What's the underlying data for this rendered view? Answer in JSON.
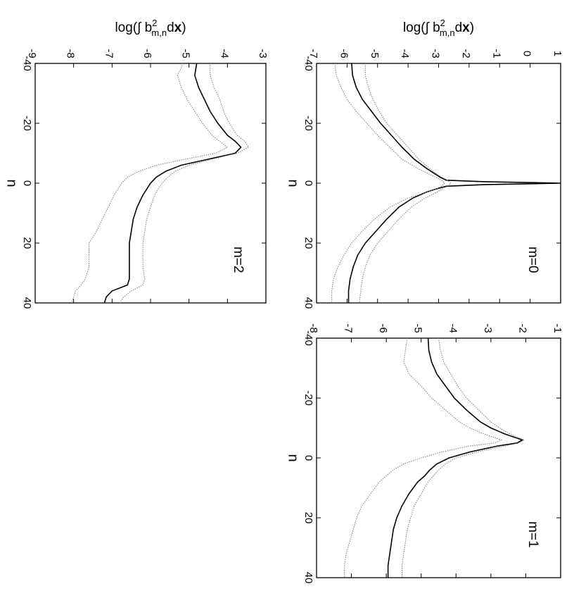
{
  "chart_data": [
    {
      "panel": "top-left",
      "type": "line",
      "annotation": "m=0",
      "xlabel": "n",
      "ylabel": {
        "pre": "log(∫ b",
        "sup": "2",
        "sub": "m,n",
        "mid": "d",
        "bold": "x",
        "post": ")"
      },
      "xlim": [
        -40,
        40
      ],
      "ylim": [
        -7,
        1
      ],
      "xticks": [
        -40,
        -20,
        0,
        20,
        40
      ],
      "yticks": [
        -7,
        -6,
        -5,
        -4,
        -3,
        -2,
        -1,
        0,
        1
      ],
      "rotated": "90deg clockwise",
      "series": [
        {
          "role": "main",
          "color": "#000000",
          "x": [
            -40,
            -36,
            -32,
            -28,
            -24,
            -20,
            -16,
            -12,
            -8,
            -5,
            -3,
            -2,
            -1,
            -0.5,
            0,
            0.5,
            1,
            2,
            3,
            5,
            8,
            12,
            16,
            20,
            24,
            28,
            32,
            36,
            40
          ],
          "y": [
            -5.85,
            -5.82,
            -5.7,
            -5.5,
            -5.2,
            -4.9,
            -4.55,
            -4.2,
            -3.8,
            -3.4,
            -3.1,
            -2.95,
            -2.75,
            -1.5,
            1,
            -1.5,
            -2.75,
            -3.1,
            -3.4,
            -3.85,
            -4.3,
            -4.7,
            -5.05,
            -5.4,
            -5.65,
            -5.8,
            -5.9,
            -5.95,
            -5.95
          ]
        },
        {
          "role": "upper",
          "color": "#7a7a7a",
          "x": [
            -40,
            -36,
            -32,
            -28,
            -24,
            -20,
            -16,
            -12,
            -8,
            -5,
            -3,
            -2,
            -1,
            0,
            1,
            2,
            3,
            5,
            8,
            12,
            16,
            20,
            24,
            28,
            32,
            36,
            40
          ],
          "y": [
            -5.4,
            -5.4,
            -5.3,
            -5.15,
            -4.95,
            -4.7,
            -4.35,
            -4.0,
            -3.65,
            -3.3,
            -3.05,
            -2.9,
            -2.7,
            -2.6,
            -2.7,
            -2.9,
            -3.05,
            -3.45,
            -3.9,
            -4.3,
            -4.65,
            -5.0,
            -5.25,
            -5.4,
            -5.5,
            -5.55,
            -5.6
          ]
        },
        {
          "role": "lower",
          "color": "#7a7a7a",
          "x": [
            -40,
            -36,
            -32,
            -28,
            -24,
            -20,
            -16,
            -12,
            -8,
            -5,
            -3,
            -2,
            -1,
            0,
            1,
            2,
            3,
            5,
            8,
            12,
            16,
            20,
            24,
            28,
            32,
            36,
            40
          ],
          "y": [
            -6.4,
            -6.35,
            -6.2,
            -6.0,
            -5.7,
            -5.35,
            -5.0,
            -4.6,
            -4.2,
            -3.7,
            -3.3,
            -3.1,
            -2.9,
            -2.8,
            -2.9,
            -3.1,
            -3.4,
            -4.0,
            -4.6,
            -5.1,
            -5.5,
            -5.85,
            -6.1,
            -6.3,
            -6.45,
            -6.5,
            -6.5
          ]
        }
      ]
    },
    {
      "panel": "top-right",
      "type": "line",
      "annotation": "m=1",
      "xlabel": "n",
      "xlim": [
        -40,
        40
      ],
      "ylim": [
        -8,
        -1
      ],
      "xticks": [
        -40,
        -20,
        0,
        20,
        40
      ],
      "yticks": [
        -8,
        -7,
        -6,
        -5,
        -4,
        -3,
        -2,
        -1
      ],
      "rotated": "90deg clockwise",
      "series": [
        {
          "role": "main",
          "color": "#000000",
          "x": [
            -40,
            -36,
            -32,
            -28,
            -24,
            -20,
            -16,
            -12,
            -10,
            -8,
            -6,
            -5,
            -4,
            -2,
            0,
            2,
            4,
            6,
            8,
            12,
            16,
            20,
            24,
            28,
            32,
            36,
            40
          ],
          "y": [
            -4.8,
            -4.78,
            -4.7,
            -4.55,
            -4.3,
            -4.05,
            -3.7,
            -3.3,
            -3.0,
            -2.6,
            -2.1,
            -2.25,
            -2.8,
            -3.6,
            -4.2,
            -4.55,
            -4.75,
            -4.9,
            -5.1,
            -5.35,
            -5.55,
            -5.7,
            -5.8,
            -5.85,
            -5.9,
            -5.95,
            -5.95
          ]
        },
        {
          "role": "upper",
          "color": "#7a7a7a",
          "x": [
            -40,
            -36,
            -32,
            -28,
            -24,
            -20,
            -16,
            -12,
            -10,
            -8,
            -6,
            -5,
            -4,
            -2,
            0,
            2,
            4,
            6,
            8,
            12,
            16,
            20,
            24,
            28,
            32,
            36,
            40
          ],
          "y": [
            -4.5,
            -4.45,
            -4.35,
            -4.15,
            -3.95,
            -3.7,
            -3.35,
            -3.0,
            -2.75,
            -2.45,
            -2.05,
            -2.2,
            -2.6,
            -3.4,
            -4.0,
            -4.3,
            -4.5,
            -4.65,
            -4.8,
            -5.0,
            -5.2,
            -5.3,
            -5.4,
            -5.45,
            -5.5,
            -5.55,
            -5.55
          ]
        },
        {
          "role": "lower",
          "color": "#7a7a7a",
          "x": [
            -40,
            -36,
            -32,
            -28,
            -24,
            -20,
            -16,
            -12,
            -10,
            -8,
            -6,
            -5,
            -4,
            -2,
            0,
            2,
            4,
            6,
            8,
            12,
            16,
            20,
            24,
            28,
            32,
            36,
            40
          ],
          "y": [
            -5.4,
            -5.45,
            -5.5,
            -5.35,
            -5.0,
            -4.7,
            -4.3,
            -3.9,
            -3.6,
            -3.2,
            -2.7,
            -2.9,
            -3.6,
            -4.4,
            -5.0,
            -5.5,
            -5.8,
            -6.0,
            -6.2,
            -6.45,
            -6.7,
            -6.85,
            -6.95,
            -7.05,
            -7.15,
            -7.2,
            -7.2
          ]
        }
      ]
    },
    {
      "panel": "bottom-left",
      "type": "line",
      "annotation": "m=2",
      "xlabel": "n",
      "ylabel": {
        "pre": "log(∫ b",
        "sup": "2",
        "sub": "m,n",
        "mid": "d",
        "bold": "x",
        "post": ")"
      },
      "xlim": [
        -40,
        40
      ],
      "ylim": [
        -9,
        -3
      ],
      "xticks": [
        -40,
        -20,
        0,
        20,
        40
      ],
      "yticks": [
        -9,
        -8,
        -7,
        -6,
        -5,
        -4,
        -3
      ],
      "rotated": "90deg clockwise",
      "series": [
        {
          "role": "main",
          "color": "#000000",
          "x": [
            -40,
            -36,
            -32,
            -28,
            -24,
            -20,
            -16,
            -14,
            -12,
            -10,
            -8,
            -6,
            -4,
            -2,
            0,
            4,
            8,
            12,
            16,
            20,
            24,
            28,
            32,
            34,
            36,
            38,
            40
          ],
          "y": [
            -4.8,
            -4.85,
            -4.75,
            -4.6,
            -4.45,
            -4.25,
            -4.0,
            -3.8,
            -3.65,
            -3.8,
            -4.5,
            -5.2,
            -5.6,
            -5.85,
            -6.0,
            -6.2,
            -6.35,
            -6.45,
            -6.5,
            -6.55,
            -6.55,
            -6.55,
            -6.55,
            -6.6,
            -7.0,
            -7.15,
            -7.2
          ]
        },
        {
          "role": "upper",
          "color": "#7a7a7a",
          "x": [
            -40,
            -36,
            -32,
            -28,
            -24,
            -20,
            -16,
            -14,
            -12,
            -10,
            -8,
            -6,
            -4,
            -2,
            0,
            4,
            8,
            12,
            16,
            20,
            24,
            28,
            32,
            34,
            36,
            38,
            40
          ],
          "y": [
            -4.45,
            -4.45,
            -4.35,
            -4.2,
            -4.1,
            -3.95,
            -3.75,
            -3.55,
            -3.45,
            -3.75,
            -4.4,
            -5.0,
            -5.35,
            -5.55,
            -5.7,
            -5.9,
            -6.0,
            -6.1,
            -6.15,
            -6.2,
            -6.2,
            -6.2,
            -6.15,
            -6.2,
            -6.5,
            -6.7,
            -6.8
          ]
        },
        {
          "role": "lower",
          "color": "#7a7a7a",
          "x": [
            -40,
            -36,
            -32,
            -28,
            -24,
            -20,
            -16,
            -14,
            -12,
            -10,
            -8,
            -6,
            -4,
            -2,
            0,
            4,
            8,
            12,
            16,
            20,
            24,
            28,
            32,
            34,
            36,
            38,
            40
          ],
          "y": [
            -5.15,
            -5.3,
            -5.2,
            -5.05,
            -4.85,
            -4.65,
            -4.4,
            -4.2,
            -4.0,
            -4.3,
            -5.1,
            -5.85,
            -6.3,
            -6.6,
            -6.75,
            -6.95,
            -7.1,
            -7.25,
            -7.4,
            -7.6,
            -7.6,
            -7.6,
            -7.7,
            -7.8,
            -7.95,
            -8.0,
            -8.05
          ]
        }
      ]
    }
  ]
}
